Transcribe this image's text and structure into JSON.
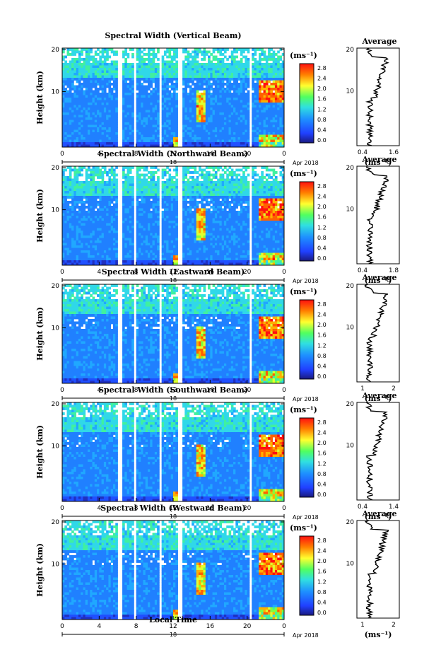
{
  "chart_data": [
    {
      "type": "heatmap",
      "title": "Spectral Width (Vertical Beam)",
      "ylabel": "Height (km)",
      "x_ticks": [
        "0",
        "4",
        "8",
        "12",
        "16",
        "20",
        "0"
      ],
      "date_marker": "18",
      "date_label": "Apr 2018",
      "y_ticks": [
        "20",
        "10"
      ],
      "colorbar_unit": "(ms⁻¹)",
      "colorbar_ticks": [
        "2.8",
        "2.4",
        "2.0",
        "1.6",
        "1.2",
        "0.8",
        "0.4",
        "0.0"
      ],
      "profile": {
        "title": "Average",
        "xlabel": "(ms⁻¹)",
        "x_ticks": [
          "0.4",
          "1.6"
        ],
        "y_ticks": [
          "20",
          "10"
        ]
      }
    },
    {
      "type": "heatmap",
      "title": "Spectral Width (Northward Beam)",
      "ylabel": "Height (km)",
      "x_ticks": [
        "0",
        "4",
        "8",
        "12",
        "16",
        "20",
        "0"
      ],
      "date_marker": "18",
      "date_label": "Apr 2018",
      "y_ticks": [
        "20",
        "10"
      ],
      "colorbar_unit": "(ms⁻¹)",
      "colorbar_ticks": [
        "2.8",
        "2.4",
        "2.0",
        "1.6",
        "1.2",
        "0.8",
        "0.4",
        "0.0"
      ],
      "profile": {
        "title": "Average",
        "xlabel": "(ms⁻¹)",
        "x_ticks": [
          "0.4",
          "1.8"
        ],
        "y_ticks": [
          "20",
          "10"
        ]
      }
    },
    {
      "type": "heatmap",
      "title": "Spectral Width (Eastward Beam)",
      "ylabel": "Height (km)",
      "x_ticks": [
        "0",
        "4",
        "8",
        "12",
        "16",
        "20",
        "0"
      ],
      "date_marker": "18",
      "date_label": "Apr 2018",
      "y_ticks": [
        "20",
        "10"
      ],
      "colorbar_unit": "(ms⁻¹)",
      "colorbar_ticks": [
        "2.8",
        "2.4",
        "2.0",
        "1.6",
        "1.2",
        "0.8",
        "0.4",
        "0.0"
      ],
      "profile": {
        "title": "Average",
        "xlabel": "(ms⁻¹)",
        "x_ticks": [
          "1",
          "2"
        ],
        "y_ticks": [
          "20",
          "10"
        ]
      }
    },
    {
      "type": "heatmap",
      "title": "Spectral Width (Southward Beam)",
      "ylabel": "Height (km)",
      "x_ticks": [
        "0",
        "4",
        "8",
        "12",
        "16",
        "20",
        "0"
      ],
      "date_marker": "18",
      "date_label": "Apr 2018",
      "y_ticks": [
        "20",
        "10"
      ],
      "colorbar_unit": "(ms⁻¹)",
      "colorbar_ticks": [
        "2.8",
        "2.4",
        "2.0",
        "1.6",
        "1.2",
        "0.8",
        "0.4",
        "0.0"
      ],
      "profile": {
        "title": "Average",
        "xlabel": "(ms⁻¹)",
        "x_ticks": [
          "0.4",
          "1.4"
        ],
        "y_ticks": [
          "20",
          "10"
        ]
      }
    },
    {
      "type": "heatmap",
      "title": "Spectral Width (Westward Beam)",
      "ylabel": "Height (km)",
      "x_ticks": [
        "0",
        "4",
        "8",
        "12",
        "16",
        "20",
        "0"
      ],
      "date_marker": "18",
      "date_label": "Apr 2018",
      "y_ticks": [
        "20",
        "10"
      ],
      "colorbar_unit": "(ms⁻¹)",
      "colorbar_ticks": [
        "2.8",
        "2.4",
        "2.0",
        "1.6",
        "1.2",
        "0.8",
        "0.4",
        "0.0"
      ],
      "profile": {
        "title": "Average",
        "xlabel": "(ms⁻¹)",
        "x_ticks": [
          "1",
          "2"
        ],
        "y_ticks": [
          "20",
          "10"
        ]
      },
      "xlabel": "Local Time"
    }
  ]
}
